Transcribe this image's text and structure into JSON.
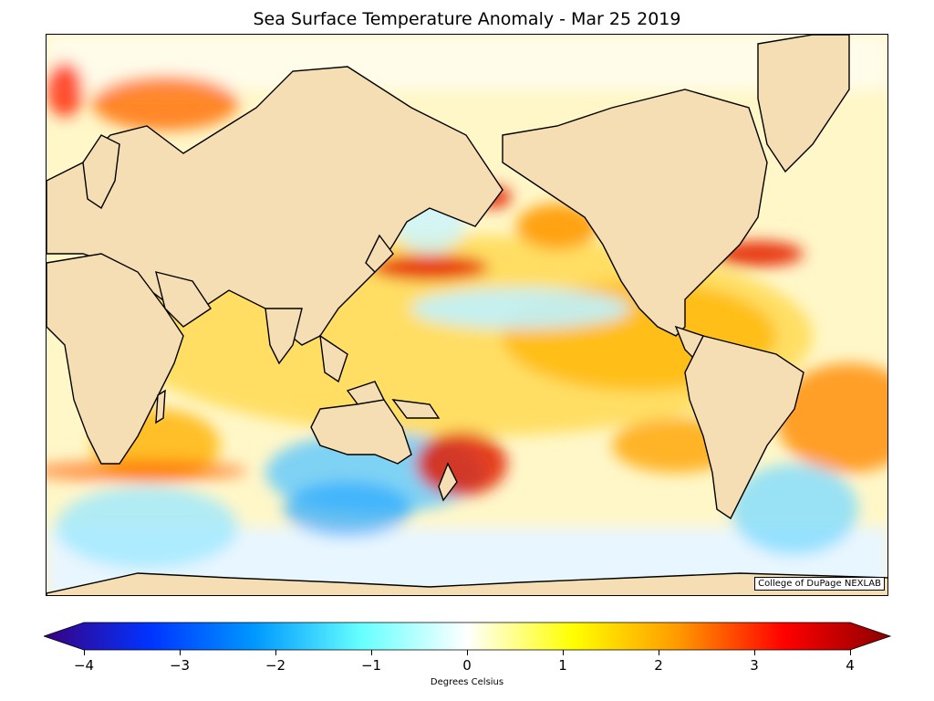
{
  "title": "Sea Surface Temperature Anomaly - Mar 25 2019",
  "credit": "College of DuPage NEXLAB",
  "colorbar": {
    "label": "Degrees Celsius",
    "min": -4,
    "max": 4,
    "ticks": [
      "−4",
      "−3",
      "−2",
      "−1",
      "0",
      "1",
      "2",
      "3",
      "4"
    ],
    "colors": [
      "#3a0080",
      "#0033ff",
      "#0099ff",
      "#66ffff",
      "#ffffff",
      "#ffff00",
      "#ff9900",
      "#ff0000",
      "#8b0000"
    ]
  },
  "map": {
    "land_color": "#f5deb3",
    "ocean_base_color": "#fffbd6"
  }
}
